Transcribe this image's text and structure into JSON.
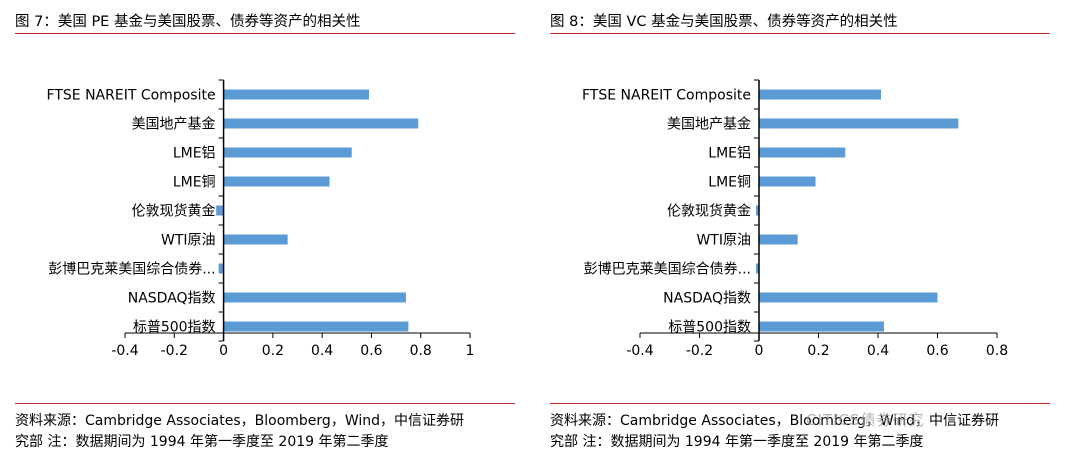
{
  "charts": [
    {
      "title": "图 7：美国 PE 基金与美国股票、债券等资产的相关性",
      "source_line1": "资料来源：Cambridge Associates，Bloomberg，Wind，中信证券研",
      "source_line2": "究部    注：数据期间为 1994 年第一季度至 2019 年第二季度"
    },
    {
      "title": "图 8：美国 VC 基金与美国股票、债券等资产的相关性",
      "source_line1": "资料来源：Cambridge Associates，Bloomberg，Wind，中信证券研",
      "source_line2": "究部    注：数据期间为 1994 年第一季度至 2019 年第二季度"
    }
  ],
  "watermark": "CITICS债券研究",
  "colors": {
    "bar": "#5b9bd5",
    "rule": "#c0272d",
    "axis": "#000000"
  },
  "chart_data": [
    {
      "type": "bar",
      "orientation": "horizontal",
      "categories": [
        "FTSE NAREIT Composite",
        "美国地产基金",
        "LME铝",
        "LME铜",
        "伦敦现货黄金",
        "WTI原油",
        "彭博巴克莱美国综合债券...",
        "NASDAQ指数",
        "标普500指数"
      ],
      "values": [
        0.59,
        0.79,
        0.52,
        0.43,
        -0.03,
        0.26,
        -0.02,
        0.74,
        0.75
      ],
      "xlim": [
        -0.4,
        1.0
      ],
      "xticks": [
        "-0.4",
        "-0.2",
        "0",
        "0.2",
        "0.4",
        "0.6",
        "0.8",
        "1"
      ],
      "xtick_values": [
        -0.4,
        -0.2,
        0,
        0.2,
        0.4,
        0.6,
        0.8,
        1.0
      ],
      "grid": false,
      "legend": "none"
    },
    {
      "type": "bar",
      "orientation": "horizontal",
      "categories": [
        "FTSE NAREIT Composite",
        "美国地产基金",
        "LME铝",
        "LME铜",
        "伦敦现货黄金",
        "WTI原油",
        "彭博巴克莱美国综合债券...",
        "NASDAQ指数",
        "标普500指数"
      ],
      "values": [
        0.41,
        0.67,
        0.29,
        0.19,
        -0.01,
        0.13,
        -0.01,
        0.6,
        0.42
      ],
      "xlim": [
        -0.4,
        0.8
      ],
      "xticks": [
        "-0.4",
        "-0.2",
        "0",
        "0.2",
        "0.4",
        "0.6",
        "0.8"
      ],
      "xtick_values": [
        -0.4,
        -0.2,
        0,
        0.2,
        0.4,
        0.6,
        0.8
      ],
      "grid": false,
      "legend": "none"
    }
  ]
}
